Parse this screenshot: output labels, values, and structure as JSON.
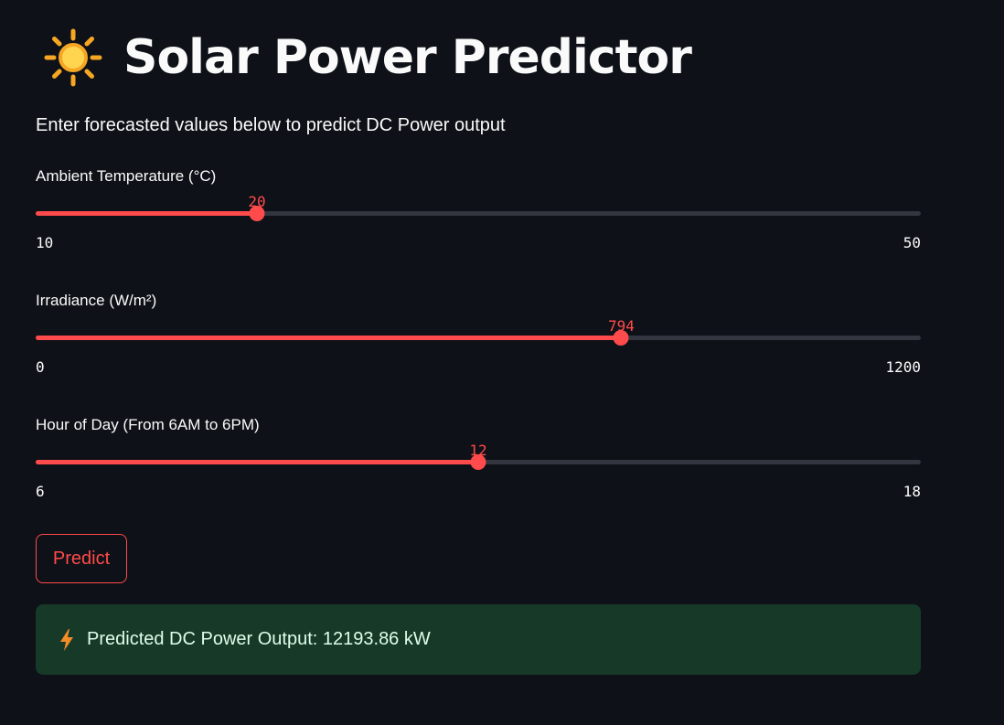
{
  "header": {
    "icon": "sun-icon",
    "title": "Solar Power Predictor"
  },
  "intro": {
    "text": "Enter forecasted values below to predict DC Power output"
  },
  "sliders": [
    {
      "label": "Ambient Temperature (°C)",
      "value": "20",
      "min": "10",
      "max": "50",
      "numeric": {
        "value": 20,
        "min": 10,
        "max": 50
      }
    },
    {
      "label": "Irradiance (W/m²)",
      "value": "794",
      "min": "0",
      "max": "1200",
      "numeric": {
        "value": 794,
        "min": 0,
        "max": 1200
      }
    },
    {
      "label": "Hour of Day (From 6AM to 6PM)",
      "value": "12",
      "min": "6",
      "max": "18",
      "numeric": {
        "value": 12,
        "min": 6,
        "max": 18
      }
    }
  ],
  "actions": {
    "predict_label": "Predict"
  },
  "result": {
    "icon": "lightning-bolt-icon",
    "text": "Predicted DC Power Output: 12193.86 kW"
  },
  "colors": {
    "background": "#0e1117",
    "accent": "#ff4b4b",
    "track": "#33353f",
    "success_bg": "#173928",
    "success_text": "#dffde9"
  }
}
